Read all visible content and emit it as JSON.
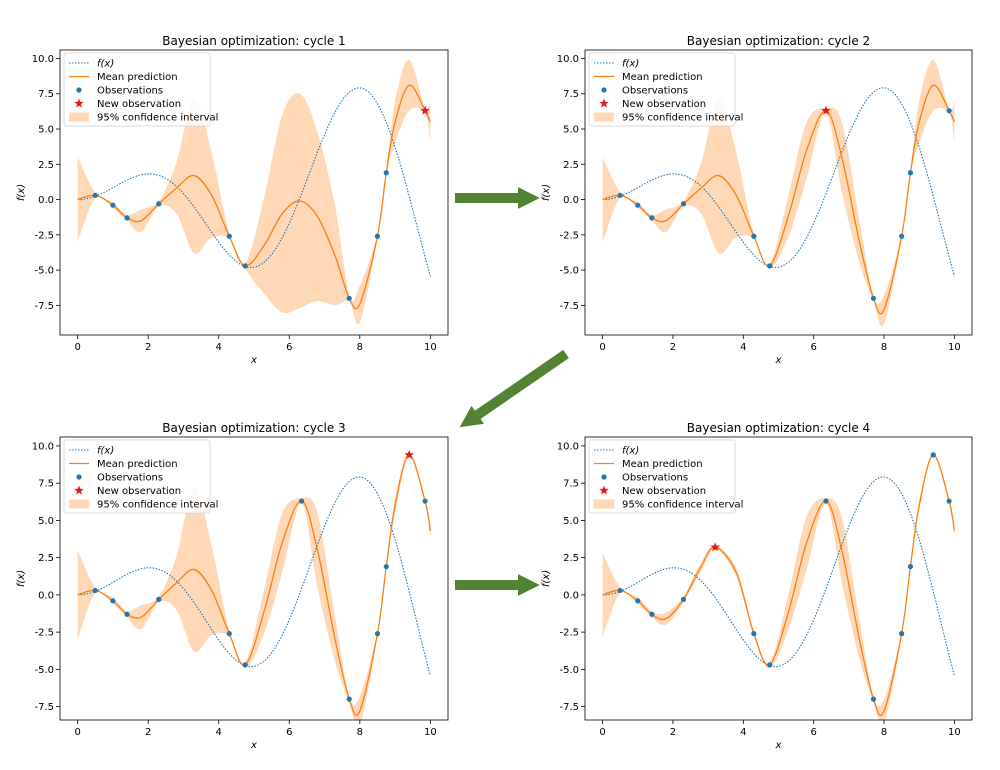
{
  "arrow_color": "#548235",
  "colors": {
    "true_function": "#1f77b4",
    "mean": "#ff7f0e",
    "ci_fill": "#ffd8b8",
    "observation": "#1f77b4",
    "new_observation": "#e8191d"
  },
  "legend_labels": {
    "true_function": "f(x)",
    "mean": "Mean prediction",
    "observations": "Observations",
    "new_observation": "New observation",
    "ci": "95% confidence interval"
  },
  "chart_data": [
    {
      "type": "line",
      "title": "Bayesian optimization: cycle 1",
      "xlabel": "x",
      "ylabel": "f(x)",
      "xlim": [
        -0.5,
        10.5
      ],
      "ylim": [
        -9.6,
        10.6
      ],
      "xticks": [
        "0",
        "2",
        "4",
        "6",
        "8",
        "10"
      ],
      "yticks": [
        "10.0",
        "7.5",
        "5.0",
        "2.5",
        "0.0",
        "-2.5",
        "-5.0",
        "-7.5"
      ],
      "legend_position": "top-left",
      "observations": {
        "x": [
          0.5,
          1.0,
          1.4,
          2.3,
          4.3,
          4.75,
          7.7,
          8.5,
          8.75
        ],
        "y": [
          0.3,
          -0.4,
          -1.3,
          -0.3,
          -2.6,
          -4.7,
          -7.0,
          -2.6,
          1.9
        ]
      },
      "new_observation": {
        "x": 9.85,
        "y": 6.3
      },
      "mean_prediction": {
        "x": [
          0,
          0.5,
          1.0,
          1.4,
          1.8,
          2.3,
          2.8,
          3.3,
          3.8,
          4.3,
          4.75,
          5.3,
          5.8,
          6.3,
          6.8,
          7.3,
          7.7,
          8.0,
          8.5,
          8.75,
          9.0,
          9.4,
          9.85,
          10.0
        ],
        "y": [
          0.0,
          0.3,
          -0.4,
          -1.3,
          -1.5,
          -0.3,
          0.8,
          1.7,
          0.3,
          -2.6,
          -4.7,
          -3.2,
          -1.0,
          -0.1,
          -1.2,
          -4.0,
          -7.0,
          -7.4,
          -2.6,
          1.9,
          5.5,
          8.1,
          6.3,
          5.5
        ]
      },
      "ci_halfwidth": [
        3.0,
        0.2,
        0.2,
        0.2,
        0.8,
        0.2,
        1.8,
        5.5,
        3.0,
        0.2,
        0.2,
        3.5,
        7.0,
        7.6,
        6.0,
        3.5,
        0.2,
        1.3,
        0.2,
        0.2,
        1.5,
        1.8,
        0.2,
        1.5
      ]
    },
    {
      "type": "line",
      "title": "Bayesian optimization: cycle 2",
      "xlabel": "x",
      "ylabel": "f(x)",
      "xlim": [
        -0.5,
        10.5
      ],
      "ylim": [
        -9.6,
        10.6
      ],
      "xticks": [
        "0",
        "2",
        "4",
        "6",
        "8",
        "10"
      ],
      "yticks": [
        "10.0",
        "7.5",
        "5.0",
        "2.5",
        "0.0",
        "-2.5",
        "-5.0",
        "-7.5"
      ],
      "legend_position": "top-left",
      "observations": {
        "x": [
          0.5,
          1.0,
          1.4,
          2.3,
          4.3,
          4.75,
          7.7,
          8.5,
          8.75,
          9.85
        ],
        "y": [
          0.3,
          -0.4,
          -1.3,
          -0.3,
          -2.6,
          -4.7,
          -7.0,
          -2.6,
          1.9,
          6.3
        ]
      },
      "new_observation": {
        "x": 6.35,
        "y": 6.3
      },
      "mean_prediction": {
        "x": [
          0,
          0.5,
          1.0,
          1.4,
          1.8,
          2.3,
          2.8,
          3.3,
          3.8,
          4.3,
          4.75,
          5.3,
          5.8,
          6.35,
          6.8,
          7.3,
          7.7,
          8.0,
          8.5,
          8.75,
          9.0,
          9.4,
          9.85,
          10.0
        ],
        "y": [
          0.0,
          0.3,
          -0.4,
          -1.3,
          -1.5,
          -0.3,
          0.8,
          1.7,
          0.3,
          -2.6,
          -4.7,
          -1.0,
          3.5,
          6.3,
          3.0,
          -3.0,
          -7.0,
          -7.8,
          -2.6,
          1.9,
          5.5,
          8.1,
          6.3,
          5.5
        ]
      },
      "ci_halfwidth": [
        3.0,
        0.2,
        0.2,
        0.2,
        0.8,
        0.2,
        1.8,
        5.5,
        3.0,
        0.2,
        0.2,
        1.5,
        2.0,
        0.2,
        2.5,
        1.5,
        0.2,
        1.0,
        0.2,
        0.2,
        1.5,
        1.8,
        0.2,
        1.5
      ]
    },
    {
      "type": "line",
      "title": "Bayesian optimization: cycle 3",
      "xlabel": "x",
      "ylabel": "f(x)",
      "xlim": [
        -0.5,
        10.5
      ],
      "ylim": [
        -8.4,
        10.6
      ],
      "xticks": [
        "0",
        "2",
        "4",
        "6",
        "8",
        "10"
      ],
      "yticks": [
        "10.0",
        "7.5",
        "5.0",
        "2.5",
        "0.0",
        "-2.5",
        "-5.0",
        "-7.5"
      ],
      "legend_position": "top-left",
      "observations": {
        "x": [
          0.5,
          1.0,
          1.4,
          2.3,
          4.3,
          4.75,
          6.35,
          7.7,
          8.5,
          8.75,
          9.85
        ],
        "y": [
          0.3,
          -0.4,
          -1.3,
          -0.3,
          -2.6,
          -4.7,
          6.3,
          -7.0,
          -2.6,
          1.9,
          6.3
        ]
      },
      "new_observation": {
        "x": 9.4,
        "y": 9.4
      },
      "mean_prediction": {
        "x": [
          0,
          0.5,
          1.0,
          1.4,
          1.8,
          2.3,
          2.8,
          3.3,
          3.8,
          4.3,
          4.75,
          5.3,
          5.8,
          6.35,
          6.8,
          7.3,
          7.7,
          8.0,
          8.5,
          8.75,
          9.0,
          9.4,
          9.85,
          10.0
        ],
        "y": [
          0.0,
          0.3,
          -0.4,
          -1.3,
          -1.5,
          -0.3,
          0.8,
          1.7,
          0.3,
          -2.6,
          -4.7,
          -1.0,
          3.5,
          6.3,
          3.0,
          -3.0,
          -7.0,
          -7.8,
          -2.6,
          1.9,
          6.0,
          9.4,
          6.3,
          4.3
        ]
      },
      "ci_halfwidth": [
        3.0,
        0.2,
        0.2,
        0.2,
        0.8,
        0.2,
        1.8,
        5.5,
        3.0,
        0.2,
        0.2,
        1.5,
        2.0,
        0.2,
        2.5,
        1.5,
        0.2,
        1.0,
        0.2,
        0.2,
        0.5,
        0.1,
        0.2,
        0.4
      ]
    },
    {
      "type": "line",
      "title": "Bayesian optimization: cycle 4",
      "xlabel": "x",
      "ylabel": "f(x)",
      "xlim": [
        -0.5,
        10.5
      ],
      "ylim": [
        -8.4,
        10.6
      ],
      "xticks": [
        "0",
        "2",
        "4",
        "6",
        "8",
        "10"
      ],
      "yticks": [
        "10.0",
        "7.5",
        "5.0",
        "2.5",
        "0.0",
        "-2.5",
        "-5.0",
        "-7.5"
      ],
      "legend_position": "top-left",
      "observations": {
        "x": [
          0.5,
          1.0,
          1.4,
          2.3,
          4.3,
          4.75,
          6.35,
          7.7,
          8.5,
          8.75,
          9.4,
          9.85
        ],
        "y": [
          0.3,
          -0.4,
          -1.3,
          -0.3,
          -2.6,
          -4.7,
          6.3,
          -7.0,
          -2.6,
          1.9,
          9.4,
          6.3
        ]
      },
      "new_observation": {
        "x": 3.2,
        "y": 3.2
      },
      "mean_prediction": {
        "x": [
          0,
          0.5,
          1.0,
          1.4,
          1.8,
          2.3,
          2.8,
          3.2,
          3.8,
          4.3,
          4.75,
          5.3,
          5.8,
          6.35,
          6.8,
          7.3,
          7.7,
          8.0,
          8.5,
          8.75,
          9.0,
          9.4,
          9.85,
          10.0
        ],
        "y": [
          0.0,
          0.3,
          -0.4,
          -1.3,
          -1.6,
          -0.3,
          1.9,
          3.2,
          1.5,
          -2.6,
          -4.7,
          -1.0,
          3.5,
          6.3,
          3.0,
          -3.0,
          -7.0,
          -7.8,
          -2.6,
          1.9,
          6.0,
          9.4,
          6.3,
          4.3
        ]
      },
      "ci_halfwidth": [
        2.8,
        0.2,
        0.2,
        0.2,
        0.4,
        0.2,
        0.3,
        0.1,
        0.3,
        0.2,
        0.2,
        1.2,
        1.8,
        0.2,
        2.2,
        1.3,
        0.2,
        0.8,
        0.2,
        0.2,
        0.3,
        0.1,
        0.2,
        0.3
      ]
    }
  ]
}
